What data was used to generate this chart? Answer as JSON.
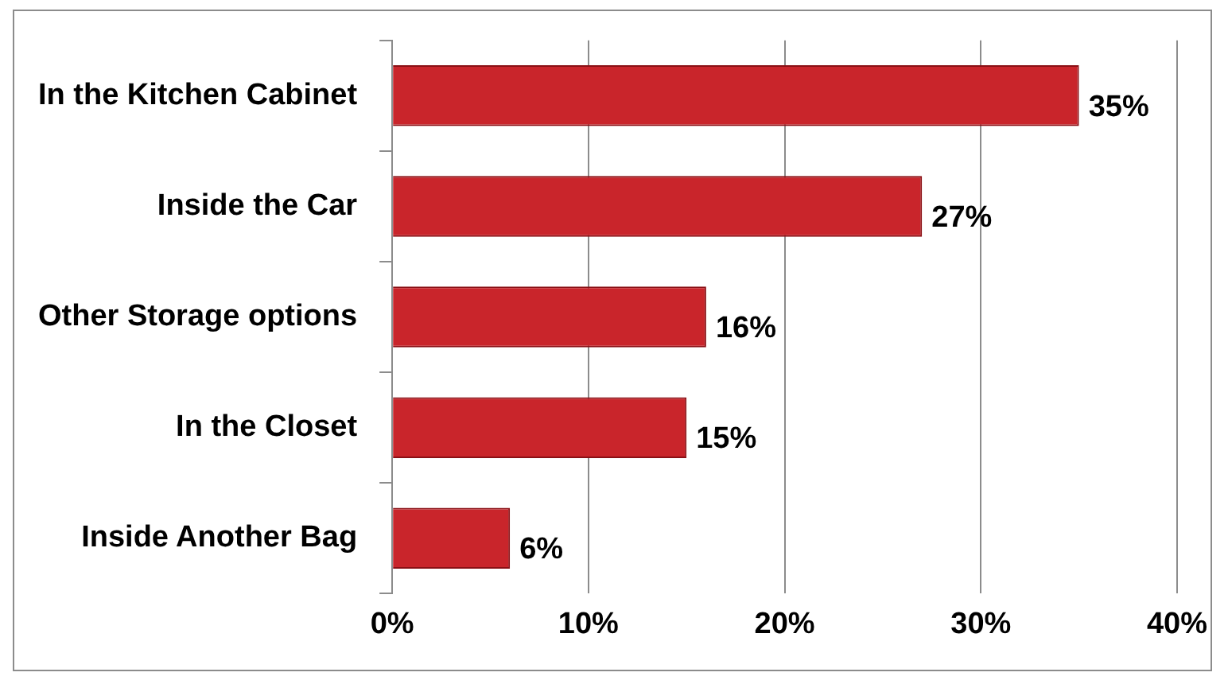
{
  "chart_data": {
    "type": "bar",
    "orientation": "horizontal",
    "categories": [
      "In the Kitchen Cabinet",
      "Inside the Car",
      "Other Storage options",
      "In the Closet",
      "Inside Another Bag"
    ],
    "values": [
      35,
      27,
      16,
      15,
      6
    ],
    "value_labels": [
      "35%",
      "27%",
      "16%",
      "15%",
      "6%"
    ],
    "color": "#c9252b",
    "xlim": [
      0,
      40
    ],
    "xticks": [
      {
        "value": 0,
        "label": "0%"
      },
      {
        "value": 10,
        "label": "10%"
      },
      {
        "value": 20,
        "label": "20%"
      },
      {
        "value": 30,
        "label": "30%"
      },
      {
        "value": 40,
        "label": "40%"
      }
    ],
    "grid": "x",
    "legend": false
  }
}
